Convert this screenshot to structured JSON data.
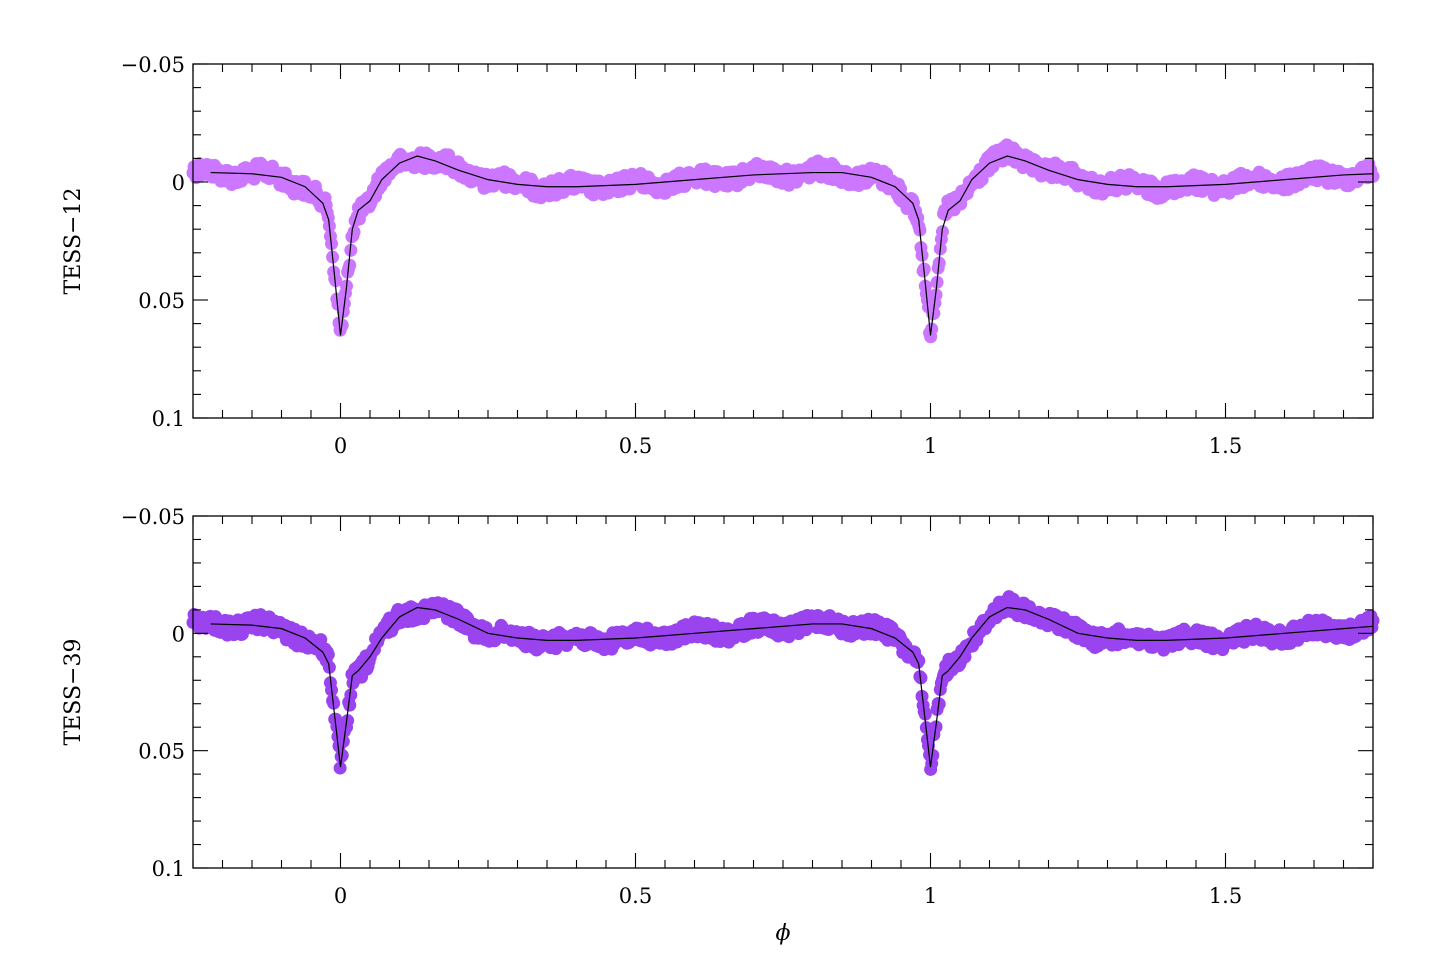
{
  "chart_data": [
    {
      "type": "scatter",
      "ylabel": "TESS−12",
      "xlabel": "",
      "xlim": [
        -0.25,
        1.75
      ],
      "ylim": [
        -0.05,
        0.1
      ],
      "y_inverted": true,
      "xticks": [
        0,
        0.5,
        1,
        1.5
      ],
      "xtick_labels": [
        "0",
        "0.5",
        "1",
        "1.5"
      ],
      "yticks": [
        -0.05,
        0,
        0.05,
        0.1
      ],
      "ytick_labels": [
        "−0.05",
        "0",
        "0.05",
        "0.1"
      ],
      "point_color": "#cc77ff",
      "model_color": "#000000",
      "series": [
        {
          "kind": "model-curve",
          "x": [
            -0.22,
            -0.15,
            -0.1,
            -0.06,
            -0.03,
            -0.02,
            -0.01,
            0,
            0.01,
            0.02,
            0.03,
            0.05,
            0.07,
            0.1,
            0.13,
            0.16,
            0.2,
            0.25,
            0.3,
            0.35,
            0.4,
            0.5,
            0.6,
            0.7,
            0.8,
            0.85,
            0.9,
            0.94,
            0.97,
            0.98,
            0.99,
            1,
            1.01,
            1.02,
            1.03,
            1.05,
            1.07,
            1.1,
            1.13,
            1.16,
            1.2,
            1.25,
            1.3,
            1.35,
            1.4,
            1.5,
            1.6,
            1.7,
            1.75
          ],
          "y": [
            -0.004,
            -0.0035,
            -0.002,
            0.002,
            0.009,
            0.016,
            0.04,
            0.065,
            0.045,
            0.02,
            0.012,
            0.008,
            -0.001,
            -0.008,
            -0.011,
            -0.009,
            -0.005,
            -0.001,
            0.001,
            0.002,
            0.002,
            0.001,
            -0.001,
            -0.003,
            -0.004,
            -0.004,
            -0.002,
            0.002,
            0.009,
            0.016,
            0.04,
            0.065,
            0.045,
            0.02,
            0.012,
            0.008,
            -0.001,
            -0.008,
            -0.011,
            -0.009,
            -0.005,
            -0.001,
            0.001,
            0.002,
            0.002,
            0.001,
            -0.001,
            -0.003,
            -0.0035
          ]
        }
      ]
    },
    {
      "type": "scatter",
      "ylabel": "TESS−39",
      "xlabel": "ϕ",
      "xlim": [
        -0.25,
        1.75
      ],
      "ylim": [
        -0.05,
        0.1
      ],
      "y_inverted": true,
      "xticks": [
        0,
        0.5,
        1,
        1.5
      ],
      "xtick_labels": [
        "0",
        "0.5",
        "1",
        "1.5"
      ],
      "yticks": [
        -0.05,
        0,
        0.05,
        0.1
      ],
      "ytick_labels": [
        "−0.05",
        "0",
        "0.05",
        "0.1"
      ],
      "point_color": "#9944ee",
      "model_color": "#000000",
      "series": [
        {
          "kind": "model-curve",
          "x": [
            -0.22,
            -0.15,
            -0.1,
            -0.06,
            -0.03,
            -0.02,
            -0.01,
            0,
            0.01,
            0.02,
            0.03,
            0.05,
            0.07,
            0.1,
            0.13,
            0.16,
            0.2,
            0.25,
            0.3,
            0.35,
            0.4,
            0.5,
            0.6,
            0.7,
            0.8,
            0.85,
            0.9,
            0.94,
            0.97,
            0.98,
            0.99,
            1,
            1.01,
            1.02,
            1.03,
            1.05,
            1.07,
            1.1,
            1.13,
            1.16,
            1.2,
            1.25,
            1.3,
            1.35,
            1.4,
            1.5,
            1.6,
            1.7,
            1.75
          ],
          "y": [
            -0.004,
            -0.0035,
            -0.002,
            0.002,
            0.008,
            0.013,
            0.035,
            0.057,
            0.038,
            0.018,
            0.016,
            0.01,
            0.002,
            -0.007,
            -0.011,
            -0.01,
            -0.006,
            0.0,
            0.002,
            0.003,
            0.003,
            0.002,
            0.0,
            -0.002,
            -0.004,
            -0.004,
            -0.002,
            0.002,
            0.008,
            0.013,
            0.035,
            0.057,
            0.038,
            0.018,
            0.016,
            0.01,
            0.002,
            -0.007,
            -0.011,
            -0.01,
            -0.006,
            0.0,
            0.002,
            0.003,
            0.003,
            0.002,
            0.0,
            -0.002,
            -0.003
          ]
        }
      ]
    }
  ]
}
